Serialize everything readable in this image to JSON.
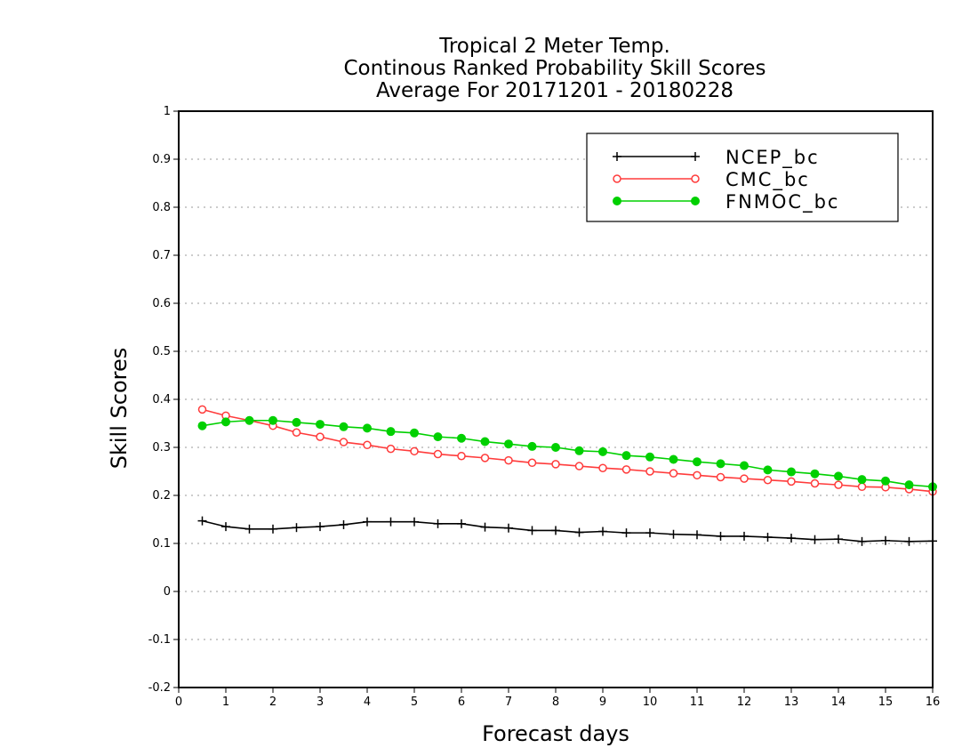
{
  "chart_data": {
    "type": "line",
    "title_lines": [
      "Tropical 2 Meter Temp.",
      "Continous Ranked Probability Skill Scores",
      "Average For 20171201 - 20180228"
    ],
    "xlabel": "Forecast days",
    "ylabel": "Skill Scores",
    "xlim": [
      0,
      16
    ],
    "ylim": [
      -0.2,
      1
    ],
    "x_ticks": [
      "0",
      "1",
      "2",
      "3",
      "4",
      "5",
      "6",
      "7",
      "8",
      "9",
      "10",
      "11",
      "12",
      "13",
      "14",
      "15",
      "16"
    ],
    "y_ticks": [
      "-0.2",
      "-0.1",
      "0",
      "0.1",
      "0.2",
      "0.3",
      "0.4",
      "0.5",
      "0.6",
      "0.7",
      "0.8",
      "0.9",
      "1"
    ],
    "grid": "horizontal dotted",
    "legend_position": "top-right",
    "x": [
      0.5,
      1,
      1.5,
      2,
      2.5,
      3,
      3.5,
      4,
      4.5,
      5,
      5.5,
      6,
      6.5,
      7,
      7.5,
      8,
      8.5,
      9,
      9.5,
      10,
      10.5,
      11,
      11.5,
      12,
      12.5,
      13,
      13.5,
      14,
      14.5,
      15,
      15.5,
      16
    ],
    "series": [
      {
        "name": "NCEP_bc",
        "color": "#000000",
        "marker": "plus",
        "values": [
          0.147,
          0.135,
          0.13,
          0.13,
          0.133,
          0.135,
          0.139,
          0.145,
          0.145,
          0.145,
          0.141,
          0.141,
          0.134,
          0.132,
          0.127,
          0.127,
          0.123,
          0.125,
          0.122,
          0.122,
          0.119,
          0.118,
          0.115,
          0.115,
          0.113,
          0.111,
          0.108,
          0.109,
          0.104,
          0.106,
          0.104,
          0.105
        ]
      },
      {
        "name": "CMC_bc",
        "color": "#ff3b3b",
        "marker": "open-circle",
        "values": [
          0.379,
          0.366,
          0.356,
          0.345,
          0.331,
          0.322,
          0.311,
          0.305,
          0.297,
          0.292,
          0.286,
          0.282,
          0.278,
          0.273,
          0.268,
          0.265,
          0.261,
          0.257,
          0.254,
          0.25,
          0.246,
          0.242,
          0.238,
          0.235,
          0.232,
          0.229,
          0.225,
          0.222,
          0.218,
          0.217,
          0.213,
          0.208
        ]
      },
      {
        "name": "FNMOC_bc",
        "color": "#00d000",
        "marker": "filled-circle",
        "values": [
          0.345,
          0.353,
          0.356,
          0.356,
          0.352,
          0.348,
          0.343,
          0.34,
          0.333,
          0.33,
          0.322,
          0.319,
          0.312,
          0.307,
          0.302,
          0.3,
          0.293,
          0.291,
          0.283,
          0.28,
          0.275,
          0.27,
          0.266,
          0.262,
          0.253,
          0.249,
          0.245,
          0.24,
          0.233,
          0.23,
          0.222,
          0.218
        ]
      }
    ]
  }
}
